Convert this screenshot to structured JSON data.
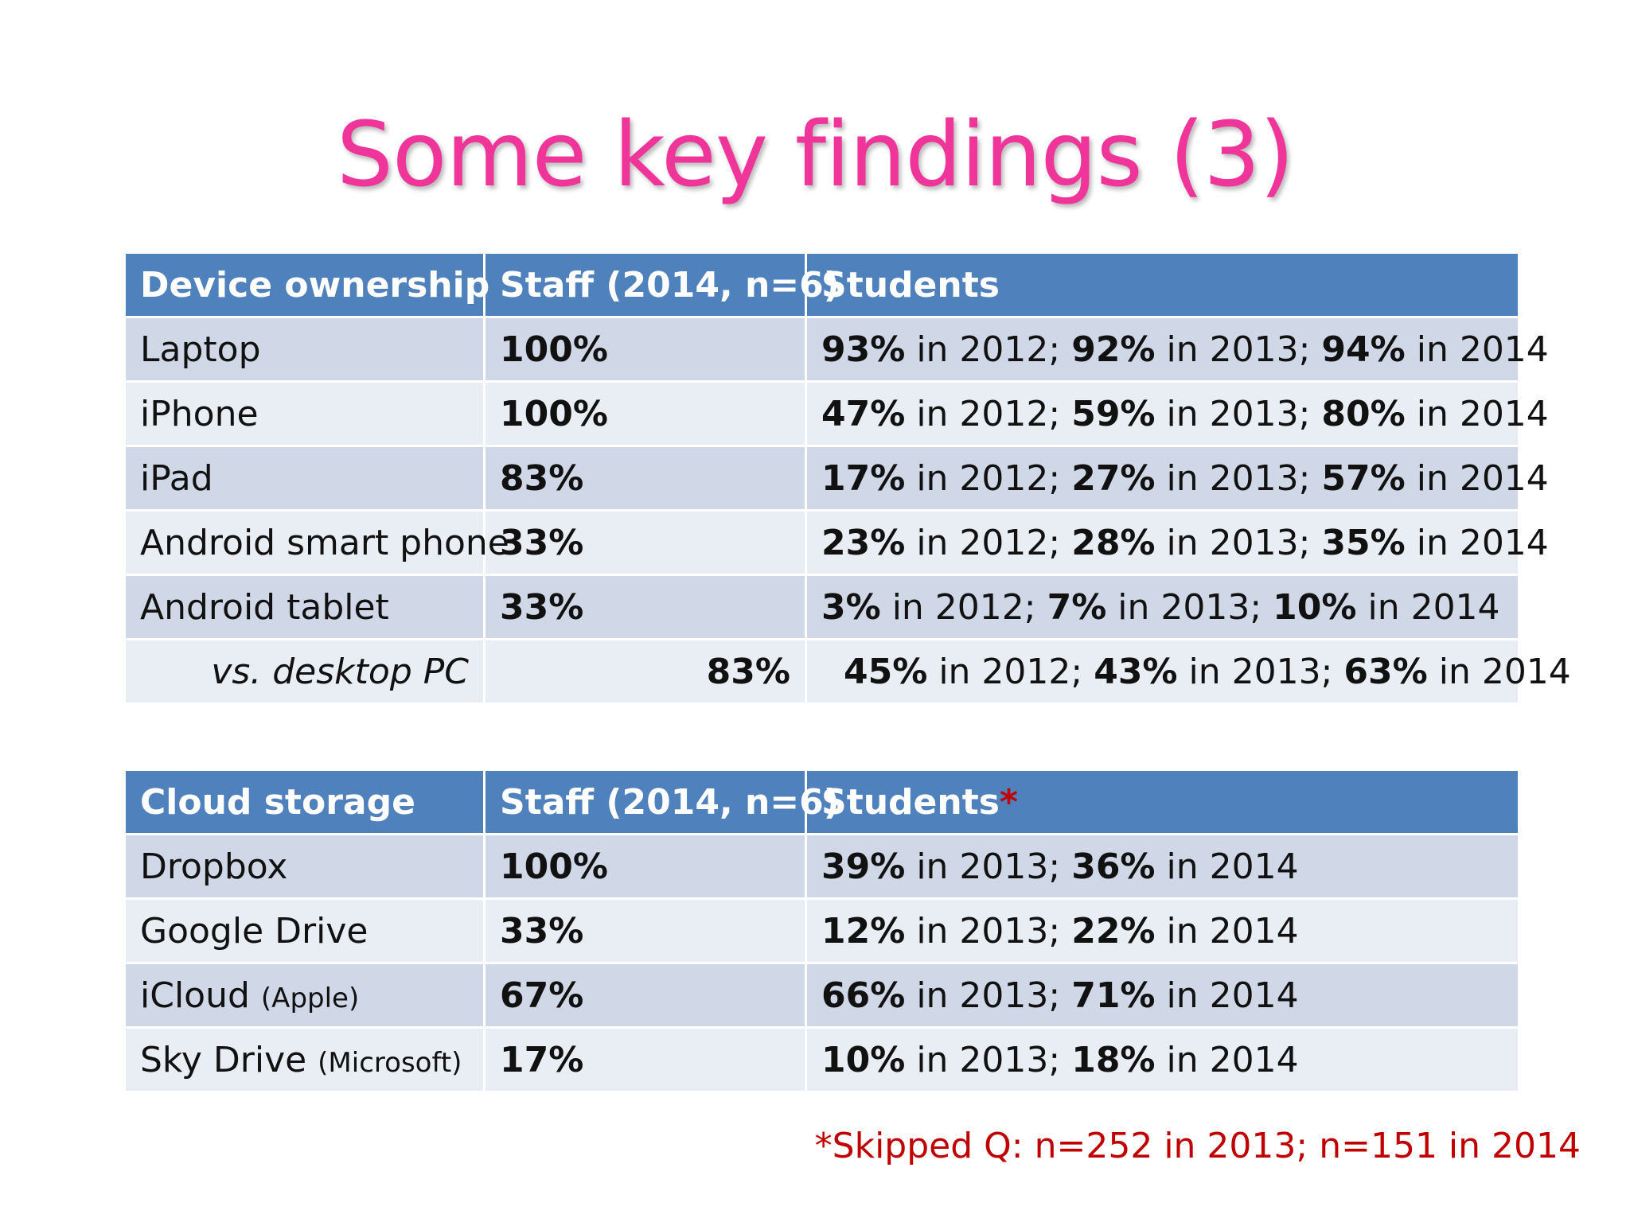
{
  "title": "Some key findings (3)",
  "device_table": {
    "headers": [
      "Device ownership",
      "Staff (2014, n=6)",
      "Students"
    ],
    "rows": [
      {
        "device": "Laptop",
        "staff": "100%",
        "students": [
          {
            "v": "93%",
            "t": " in 2012; "
          },
          {
            "v": "92%",
            "t": " in 2013; "
          },
          {
            "v": "94%",
            "t": " in 2014"
          }
        ]
      },
      {
        "device": "iPhone",
        "staff": "100%",
        "students": [
          {
            "v": "47%",
            "t": " in 2012; "
          },
          {
            "v": "59%",
            "t": " in 2013; "
          },
          {
            "v": "80%",
            "t": " in 2014"
          }
        ]
      },
      {
        "device": "iPad",
        "staff": "83%",
        "students": [
          {
            "v": "17%",
            "t": " in 2012; "
          },
          {
            "v": "27%",
            "t": " in 2013; "
          },
          {
            "v": "57%",
            "t": " in 2014"
          }
        ]
      },
      {
        "device": "Android smart phone",
        "staff": "33%",
        "students": [
          {
            "v": "23%",
            "t": " in 2012; "
          },
          {
            "v": "28%",
            "t": " in 2013; "
          },
          {
            "v": "35%",
            "t": " in 2014"
          }
        ]
      },
      {
        "device": "Android tablet",
        "staff": "33%",
        "students": [
          {
            "v": "3%",
            "t": " in 2012; "
          },
          {
            "v": "7%",
            "t": " in 2013; "
          },
          {
            "v": "10%",
            "t": " in 2014"
          }
        ]
      },
      {
        "device": "vs. desktop PC",
        "staff": "83%",
        "students": [
          {
            "v": "45%",
            "t": " in 2012; "
          },
          {
            "v": "43%",
            "t": " in 2013; "
          },
          {
            "v": "63%",
            "t": " in 2014"
          }
        ]
      }
    ]
  },
  "cloud_table": {
    "headers": [
      "Cloud storage",
      "Staff (2014, n=6)",
      "Students"
    ],
    "header_asterisk": "*",
    "rows": [
      {
        "service": "Dropbox",
        "note": "",
        "staff": "100%",
        "students": [
          {
            "v": "39%",
            "t": " in 2013; "
          },
          {
            "v": "36%",
            "t": " in 2014"
          }
        ]
      },
      {
        "service": "Google Drive",
        "note": "",
        "staff": "33%",
        "students": [
          {
            "v": "12%",
            "t": " in 2013; "
          },
          {
            "v": "22%",
            "t": " in 2014"
          }
        ]
      },
      {
        "service": "iCloud",
        "note": "(Apple)",
        "staff": "67%",
        "students": [
          {
            "v": "66%",
            "t": " in 2013; "
          },
          {
            "v": "71%",
            "t": " in 2014"
          }
        ]
      },
      {
        "service": "Sky Drive",
        "note": "(Microsoft)",
        "staff": "17%",
        "students": [
          {
            "v": "10%",
            "t": " in 2013; "
          },
          {
            "v": "18%",
            "t": " in 2014"
          }
        ]
      }
    ]
  },
  "footnote": "*Skipped Q: n=252 in 2013; n=151 in 2014"
}
